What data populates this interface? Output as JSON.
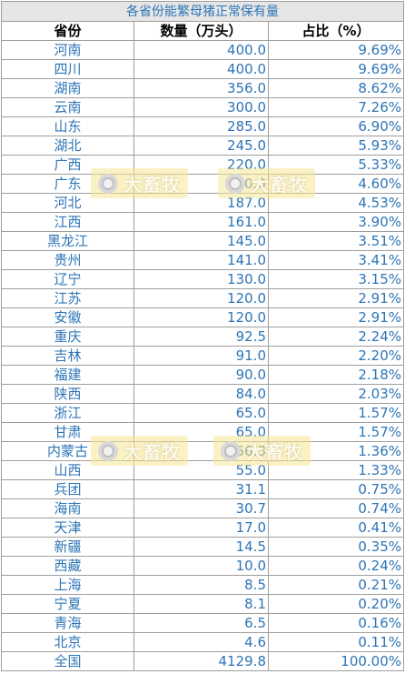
{
  "title": "各省份能繁母猪正常保有量",
  "headers": {
    "province": "省份",
    "quantity": "数量（万头）",
    "share": "占比（%）"
  },
  "rows": [
    {
      "province": "河南",
      "quantity": "400.0",
      "share": "9.69%"
    },
    {
      "province": "四川",
      "quantity": "400.0",
      "share": "9.69%"
    },
    {
      "province": "湖南",
      "quantity": "356.0",
      "share": "8.62%"
    },
    {
      "province": "云南",
      "quantity": "300.0",
      "share": "7.26%"
    },
    {
      "province": "山东",
      "quantity": "285.0",
      "share": "6.90%"
    },
    {
      "province": "湖北",
      "quantity": "245.0",
      "share": "5.93%"
    },
    {
      "province": "广西",
      "quantity": "220.0",
      "share": "5.33%"
    },
    {
      "province": "广东",
      "quantity": "190.0",
      "share": "4.60%"
    },
    {
      "province": "河北",
      "quantity": "187.0",
      "share": "4.53%"
    },
    {
      "province": "江西",
      "quantity": "161.0",
      "share": "3.90%"
    },
    {
      "province": "黑龙江",
      "quantity": "145.0",
      "share": "3.51%"
    },
    {
      "province": "贵州",
      "quantity": "141.0",
      "share": "3.41%"
    },
    {
      "province": "辽宁",
      "quantity": "130.0",
      "share": "3.15%"
    },
    {
      "province": "江苏",
      "quantity": "120.0",
      "share": "2.91%"
    },
    {
      "province": "安徽",
      "quantity": "120.0",
      "share": "2.91%"
    },
    {
      "province": "重庆",
      "quantity": "92.5",
      "share": "2.24%"
    },
    {
      "province": "吉林",
      "quantity": "91.0",
      "share": "2.20%"
    },
    {
      "province": "福建",
      "quantity": "90.0",
      "share": "2.18%"
    },
    {
      "province": "陕西",
      "quantity": "84.0",
      "share": "2.03%"
    },
    {
      "province": "浙江",
      "quantity": "65.0",
      "share": "1.57%"
    },
    {
      "province": "甘肃",
      "quantity": "65.0",
      "share": "1.57%"
    },
    {
      "province": "内蒙古",
      "quantity": "56.3",
      "share": "1.36%"
    },
    {
      "province": "山西",
      "quantity": "55.0",
      "share": "1.33%"
    },
    {
      "province": "兵团",
      "quantity": "31.1",
      "share": "0.75%"
    },
    {
      "province": "海南",
      "quantity": "30.7",
      "share": "0.74%"
    },
    {
      "province": "天津",
      "quantity": "17.0",
      "share": "0.41%"
    },
    {
      "province": "新疆",
      "quantity": "14.5",
      "share": "0.35%"
    },
    {
      "province": "西藏",
      "quantity": "10.0",
      "share": "0.24%"
    },
    {
      "province": "上海",
      "quantity": "8.5",
      "share": "0.21%"
    },
    {
      "province": "宁夏",
      "quantity": "8.1",
      "share": "0.20%"
    },
    {
      "province": "青海",
      "quantity": "6.5",
      "share": "0.16%"
    },
    {
      "province": "北京",
      "quantity": "4.6",
      "share": "0.11%"
    }
  ],
  "total": {
    "province": "全国",
    "quantity": "4129.8",
    "share": "100.00%"
  },
  "watermark": {
    "text": "大畜牧",
    "icon": "logo-circle-icon"
  },
  "colors": {
    "text": "#2e75b6",
    "title_bg": "#e6e6e6",
    "grid": "#9e9e9e",
    "watermark_bg": "#f5e696"
  }
}
